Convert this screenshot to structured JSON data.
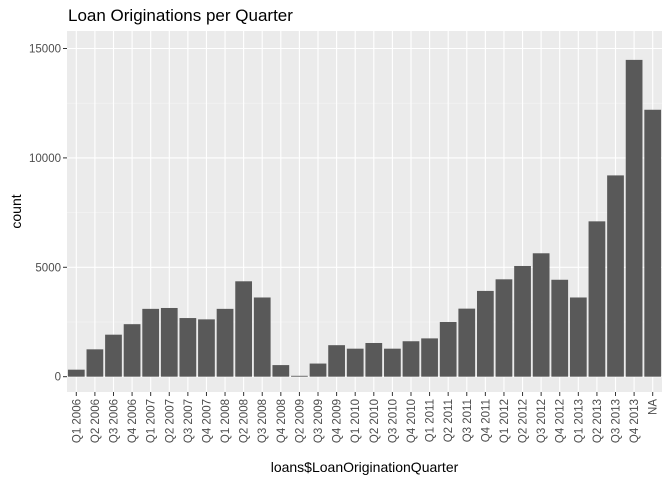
{
  "chart_data": {
    "type": "bar",
    "title": "Loan Originations per Quarter",
    "xlabel": "loans$LoanOriginationQuarter",
    "ylabel": "count",
    "ylim": [
      -700,
      15800
    ],
    "yticks": [
      0,
      5000,
      10000,
      15000
    ],
    "grid": true,
    "colors": {
      "bar": "#595959",
      "panel": "#ebebeb",
      "grid_major": "#ffffff",
      "axis_text": "#4d4d4d"
    },
    "categories": [
      "Q1 2006",
      "Q2 2006",
      "Q3 2006",
      "Q4 2006",
      "Q1 2007",
      "Q2 2007",
      "Q3 2007",
      "Q4 2007",
      "Q1 2008",
      "Q2 2008",
      "Q3 2008",
      "Q4 2008",
      "Q2 2009",
      "Q3 2009",
      "Q4 2009",
      "Q1 2010",
      "Q2 2010",
      "Q3 2010",
      "Q4 2010",
      "Q1 2011",
      "Q2 2011",
      "Q3 2011",
      "Q4 2011",
      "Q1 2012",
      "Q2 2012",
      "Q3 2012",
      "Q4 2012",
      "Q1 2013",
      "Q2 2013",
      "Q3 2013",
      "Q4 2013",
      "NA"
    ],
    "values": [
      320,
      1250,
      1920,
      2400,
      3100,
      3140,
      2680,
      2620,
      3100,
      4360,
      3620,
      530,
      40,
      600,
      1440,
      1280,
      1540,
      1280,
      1620,
      1750,
      2500,
      3110,
      3920,
      4450,
      5060,
      5640,
      4430,
      3620,
      7100,
      9200,
      14480,
      12200
    ]
  }
}
